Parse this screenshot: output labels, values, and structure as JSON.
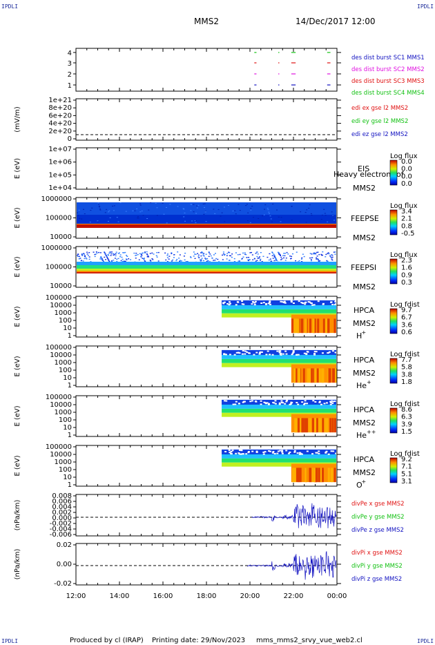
{
  "header": {
    "corner_label": "IPDLI",
    "spacecraft": "MMS2",
    "datetime": "14/Dec/2017 12:00"
  },
  "footer": {
    "produced_by": "Produced by cl (IRAP)",
    "printing_date": "Printing date: 29/Nov/2023",
    "filename": "mms_mms2_srvy_vue_web2.cl"
  },
  "colors": {
    "mms1": "#1010c0",
    "mms2": "#e010e0",
    "mms3": "#e01010",
    "mms4": "#10c010",
    "x": "#e01010",
    "y": "#10c010",
    "z": "#1010c0"
  },
  "chart_data": {
    "type": "heatmap",
    "x_axis": {
      "ticks": [
        "12:00",
        "14:00",
        "16:00",
        "18:00",
        "20:00",
        "22:00",
        "00:00"
      ],
      "range_hours": [
        12,
        24
      ]
    },
    "panels": [
      {
        "id": "burst",
        "type": "scatter",
        "yticks": [
          "4",
          "3",
          "2",
          "1"
        ],
        "legend": [
          {
            "text": "des dist burst SC1 MMS1",
            "color": "#1010c0"
          },
          {
            "text": "des dist burst SC2 MMS2",
            "color": "#e010e0"
          },
          {
            "text": "des dist burst SC3 MMS3",
            "color": "#e01010"
          },
          {
            "text": "des dist burst SC4 MMS4",
            "color": "#10c010"
          }
        ],
        "burst_intervals_hours": [
          [
            20.2,
            20.3
          ],
          [
            21.3,
            21.35
          ],
          [
            21.9,
            22.1
          ],
          [
            23.55,
            23.7
          ]
        ]
      },
      {
        "id": "edi",
        "type": "line",
        "ylabel": "(mV/m)",
        "yticks": [
          "1e+21",
          "8e+20",
          "6e+20",
          "4e+20",
          "2e+20",
          "0"
        ],
        "legend": [
          {
            "text": "edi ex gse l2 MMS2",
            "color": "#e01010"
          },
          {
            "text": "edi ey gse l2 MMS2",
            "color": "#10c010"
          },
          {
            "text": "edi ez gse l2 MMS2",
            "color": "#1010c0"
          }
        ]
      },
      {
        "id": "eis",
        "type": "heatmap",
        "ylabel": "E (eV)",
        "yticks": [
          "1e+07",
          "1e+06",
          "1e+05",
          "1e+04"
        ],
        "instrument": "EIS",
        "sub": "MMS2",
        "overlay": "Heavy electron tof",
        "cbar_title": "Log flux",
        "cbar_ticks": [
          "0.0",
          "0.0",
          "0.0",
          "0.0"
        ]
      },
      {
        "id": "feepse",
        "type": "heatmap",
        "ylabel": "E (eV)",
        "yticks": [
          "1000000",
          "100000",
          "10000"
        ],
        "instrument": "FEEPSE",
        "sub": "MMS2",
        "cbar_title": "Log flux",
        "cbar_ticks": [
          "3.4",
          "2.1",
          "0.8",
          "-0.5"
        ]
      },
      {
        "id": "feepsi",
        "type": "heatmap",
        "ylabel": "E (eV)",
        "yticks": [
          "1000000",
          "100000",
          "10000"
        ],
        "instrument": "FEEPSI",
        "sub": "MMS2",
        "cbar_title": "Log flux",
        "cbar_ticks": [
          "2.3",
          "1.6",
          "0.9",
          "0.3"
        ]
      },
      {
        "id": "hpca_h",
        "type": "heatmap",
        "ylabel": "E (eV)",
        "yticks": [
          "100000",
          "10000",
          "1000",
          "100",
          "10",
          "1"
        ],
        "instrument": "HPCA",
        "sub": "MMS2",
        "species": "H",
        "species_sup": "+",
        "cbar_title": "Log fdist",
        "cbar_ticks": [
          "9.7",
          "6.7",
          "3.6",
          "0.6"
        ],
        "onset_hour": 18.7
      },
      {
        "id": "hpca_he",
        "type": "heatmap",
        "ylabel": "E (eV)",
        "yticks": [
          "100000",
          "10000",
          "1000",
          "100",
          "10",
          "1"
        ],
        "instrument": "HPCA",
        "sub": "MMS2",
        "species": "He",
        "species_sup": "+",
        "cbar_title": "Log fdist",
        "cbar_ticks": [
          "7.7",
          "5.8",
          "3.8",
          "1.8"
        ],
        "onset_hour": 18.7
      },
      {
        "id": "hpca_hepp",
        "type": "heatmap",
        "ylabel": "E (eV)",
        "yticks": [
          "100000",
          "10000",
          "1000",
          "100",
          "10",
          "1"
        ],
        "instrument": "HPCA",
        "sub": "MMS2",
        "species": "He",
        "species_sup": "++",
        "cbar_title": "Log fdist",
        "cbar_ticks": [
          "8.6",
          "6.3",
          "3.9",
          "1.5"
        ],
        "onset_hour": 18.7
      },
      {
        "id": "hpca_o",
        "type": "heatmap",
        "ylabel": "E (eV)",
        "yticks": [
          "100000",
          "10000",
          "1000",
          "100",
          "10",
          "1"
        ],
        "instrument": "HPCA",
        "sub": "MMS2",
        "species": "O",
        "species_sup": "+",
        "cbar_title": "Log fdist",
        "cbar_ticks": [
          "9.2",
          "7.1",
          "5.1",
          "3.1"
        ],
        "onset_hour": 18.7
      },
      {
        "id": "divpe",
        "type": "line",
        "ylabel": "(nPa/km)",
        "yticks": [
          "0.008",
          "0.006",
          "0.004",
          "0.002",
          "0.000",
          "-0.002",
          "-0.004",
          "-0.006"
        ],
        "legend": [
          {
            "text": "divPe x gse MMS2",
            "color": "#e01010"
          },
          {
            "text": "divPe y gse MMS2",
            "color": "#10c010"
          },
          {
            "text": "divPe z gse MMS2",
            "color": "#1010c0"
          }
        ]
      },
      {
        "id": "divpi",
        "type": "line",
        "ylabel": "(nPa/km)",
        "yticks": [
          "0.02",
          "0.00",
          "-0.02"
        ],
        "legend": [
          {
            "text": "divPi x gse MMS2",
            "color": "#e01010"
          },
          {
            "text": "divPi y gse MMS2",
            "color": "#10c010"
          },
          {
            "text": "divPi z gse MMS2",
            "color": "#1010c0"
          }
        ]
      }
    ]
  }
}
